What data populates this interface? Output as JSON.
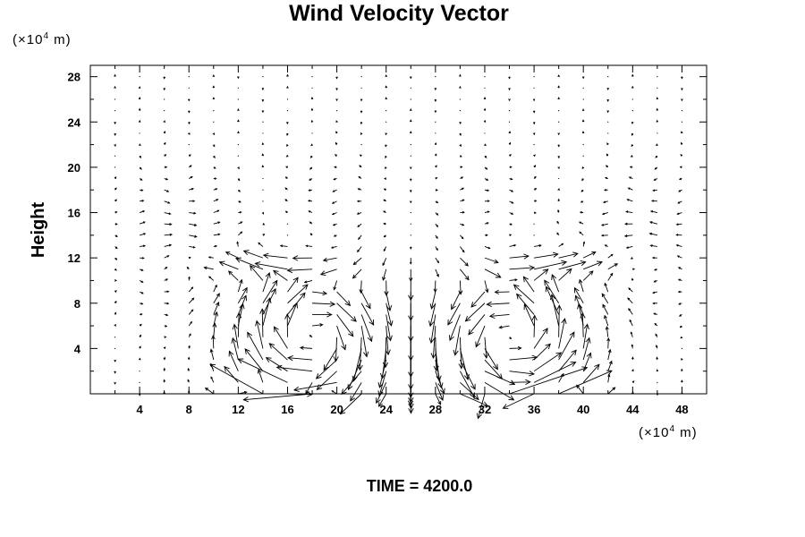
{
  "chart_data": {
    "type": "quiver",
    "title": "Wind Velocity Vector",
    "xlabel": "",
    "ylabel": "Height",
    "x_unit_prefix": "(×10",
    "x_unit_exp": "4",
    "x_unit_suffix": " m)",
    "y_unit_prefix": "(×10",
    "y_unit_exp": "4",
    "y_unit_suffix": " m)",
    "xlim": [
      0,
      50
    ],
    "ylim": [
      0,
      29
    ],
    "x_ticks": [
      4,
      8,
      12,
      16,
      20,
      24,
      28,
      32,
      36,
      40,
      44,
      48
    ],
    "y_ticks": [
      4,
      8,
      12,
      16,
      20,
      24,
      28
    ],
    "x_tick_labels": [
      "4",
      "8",
      "12",
      "16",
      "20",
      "24",
      "28",
      "32",
      "36",
      "40",
      "44",
      "48"
    ],
    "y_tick_labels": [
      "4",
      "8",
      "12",
      "16",
      "20",
      "24",
      "28"
    ],
    "grid": false,
    "footer": "TIME = 4200.0",
    "grid_x": [
      2,
      4,
      6,
      8,
      10,
      12,
      14,
      16,
      18,
      20,
      22,
      24,
      26,
      28,
      30,
      32,
      34,
      36,
      38,
      40,
      42,
      44,
      46,
      48
    ],
    "grid_y": [
      0,
      1,
      2,
      3,
      4,
      5,
      6,
      7,
      8,
      9,
      10,
      11,
      12,
      13,
      14,
      15,
      16,
      17,
      18,
      19,
      20,
      21,
      22,
      23,
      24,
      25,
      26,
      27,
      28
    ],
    "vortex_centers": [
      {
        "x": 18,
        "y": 5,
        "rotation": "clockwise"
      },
      {
        "x": 34,
        "y": 5,
        "rotation": "counterclockwise"
      }
    ],
    "axis_of_symmetry_x": 26,
    "max_vector_length": 3.5
  }
}
